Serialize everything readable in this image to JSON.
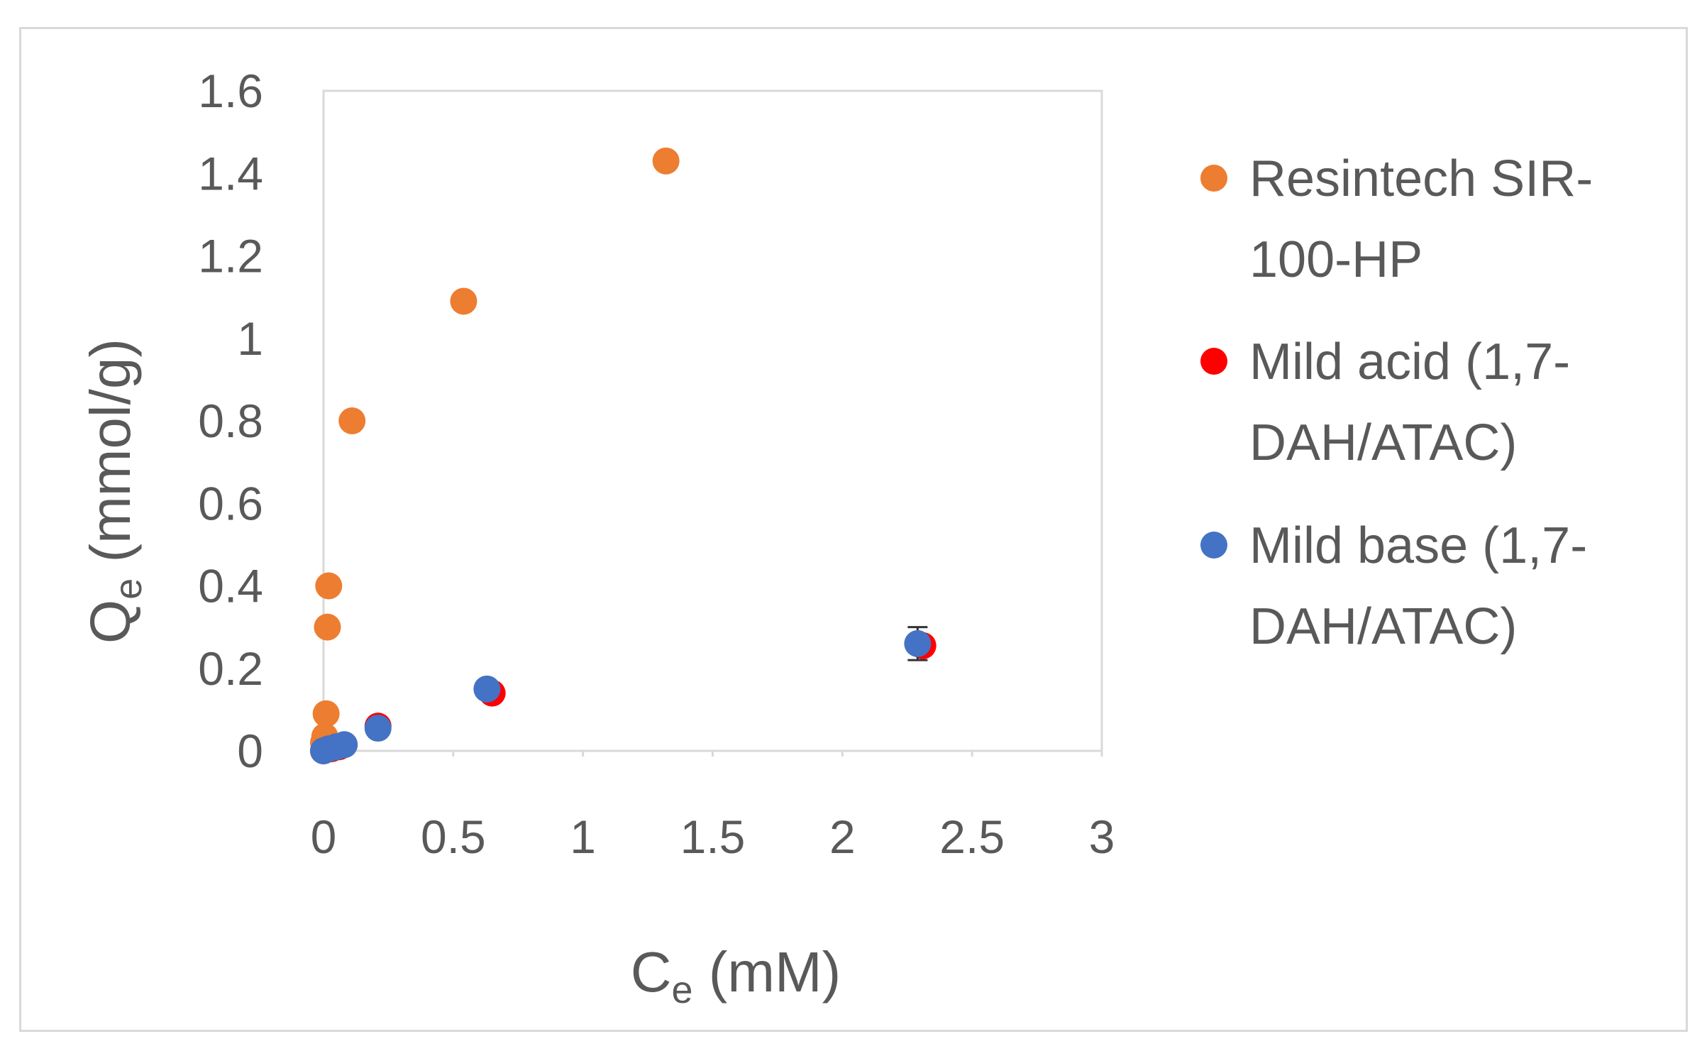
{
  "chart_data": {
    "type": "scatter",
    "title": "",
    "xlabel": {
      "main": "C",
      "sub": "e",
      "rest": " (mM)"
    },
    "ylabel": {
      "main": "Q",
      "sub": "e",
      "rest": " (mmol/g)"
    },
    "xlim": [
      0,
      3
    ],
    "ylim": [
      0,
      1.6
    ],
    "x_ticks": [
      0,
      0.5,
      1,
      1.5,
      2,
      2.5,
      3
    ],
    "x_tick_labels": [
      "0",
      "0.5",
      "1",
      "1.5",
      "2",
      "2.5",
      "3"
    ],
    "y_ticks": [
      0,
      0.2,
      0.4,
      0.6,
      0.8,
      1,
      1.2,
      1.4,
      1.6
    ],
    "y_tick_labels": [
      "0",
      "0.2",
      "0.4",
      "0.6",
      "0.8",
      "1",
      "1.2",
      "1.4",
      "1.6"
    ],
    "grid": false,
    "legend_position": "right",
    "series": [
      {
        "name": "Resintech SIR-100-HP",
        "legend_lines": [
          "Resintech SIR-",
          "100-HP"
        ],
        "color": "#ED7D31",
        "points": [
          [
            0,
            0.02
          ],
          [
            0.005,
            0.035
          ],
          [
            0.01,
            0.09
          ],
          [
            0.015,
            0.3
          ],
          [
            0.02,
            0.4
          ],
          [
            0.11,
            0.8
          ],
          [
            0.54,
            1.09
          ],
          [
            1.32,
            1.43
          ]
        ]
      },
      {
        "name": "Mild acid (1,7-DAH/ATAC)",
        "legend_lines": [
          "Mild acid (1,7-",
          "DAH/ATAC)"
        ],
        "color": "#FF0000",
        "points": [
          [
            0,
            0
          ],
          [
            0.03,
            0.005
          ],
          [
            0.06,
            0.01
          ],
          [
            0.21,
            0.06
          ],
          [
            0.65,
            0.14
          ],
          [
            2.31,
            0.255
          ]
        ]
      },
      {
        "name": "Mild base (1,7-DAH/ATAC)",
        "legend_lines": [
          "Mild base (1,7-",
          "DAH/ATAC)"
        ],
        "color": "#4472C4",
        "points": [
          [
            0,
            0
          ],
          [
            0.02,
            0.005
          ],
          [
            0.05,
            0.01
          ],
          [
            0.08,
            0.015
          ],
          [
            0.21,
            0.055
          ],
          [
            0.63,
            0.15
          ],
          [
            2.29,
            0.26
          ]
        ],
        "error_y": [
          0,
          0,
          0,
          0,
          0,
          0,
          0.04
        ]
      }
    ]
  }
}
